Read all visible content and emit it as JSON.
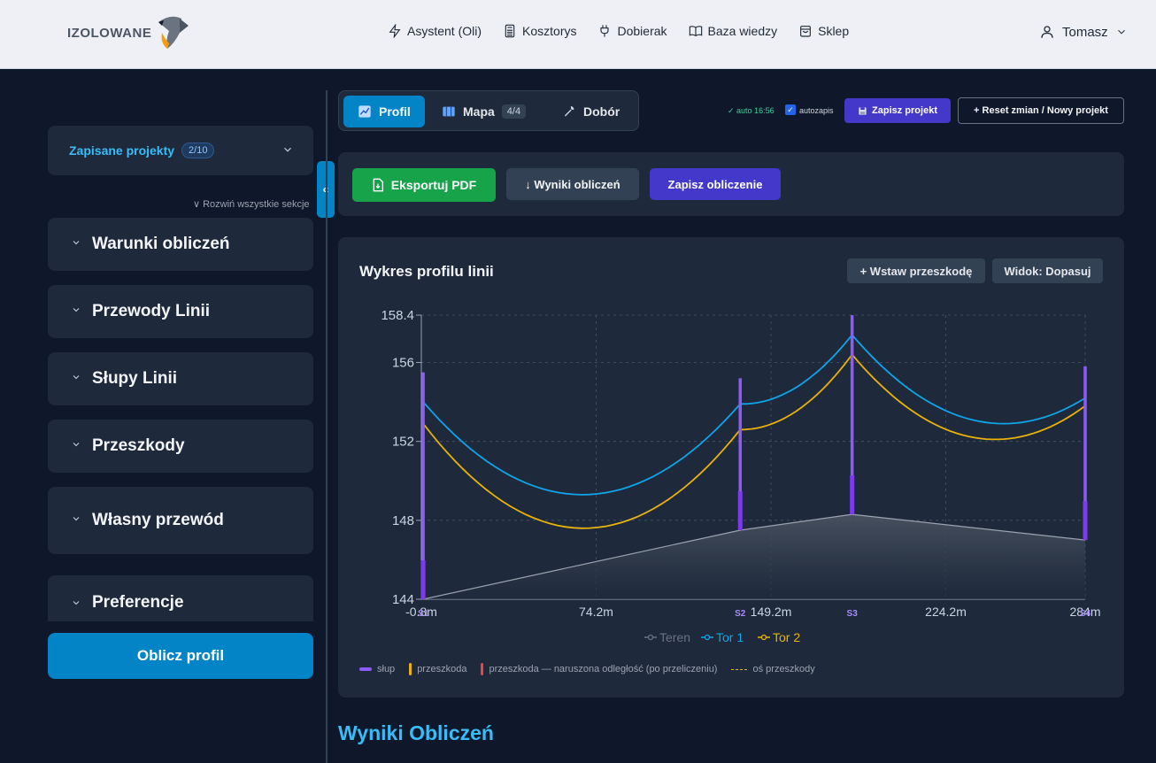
{
  "brand": {
    "name": "IZOLOWANE"
  },
  "nav": {
    "items": [
      {
        "label": "Asystent (Oli)",
        "icon": "lightning-icon"
      },
      {
        "label": "Kosztorys",
        "icon": "calculator-icon"
      },
      {
        "label": "Dobierak",
        "icon": "plug-icon"
      },
      {
        "label": "Baza wiedzy",
        "icon": "book-icon"
      },
      {
        "label": "Sklep",
        "icon": "bag-icon"
      }
    ],
    "user": "Tomasz"
  },
  "sidebar": {
    "saved_title": "Zapisane projekty",
    "saved_count": "2/10",
    "expand_all": "∨ Rozwiń wszystkie sekcje",
    "sections": [
      {
        "label": "Warunki obliczeń"
      },
      {
        "label": "Przewody Linii"
      },
      {
        "label": "Słupy Linii"
      },
      {
        "label": "Przeszkody"
      },
      {
        "label": "Własny przewód"
      },
      {
        "label": "Preferencje"
      }
    ],
    "calc_button": "Oblicz profil",
    "collapse_glyph": "«"
  },
  "tabs": [
    {
      "label": "Profil",
      "active": true
    },
    {
      "label": "Mapa",
      "count": "4/4"
    },
    {
      "label": "Dobór"
    }
  ],
  "autosave": {
    "status": "✓ auto 16:56",
    "label": "autozapis",
    "checked": true
  },
  "toolbar": {
    "save_project": "Zapisz projekt",
    "reset": "+ Reset zmian / Nowy projekt"
  },
  "actions": {
    "export_pdf": "Eksportuj PDF",
    "results": "↓ Wyniki obliczeń",
    "save_calc": "Zapisz obliczenie"
  },
  "chart_card": {
    "title": "Wykres profilu linii",
    "insert_obstacle": "+ Wstaw przeszkodę",
    "view": "Widok: Dopasuj",
    "legend_bottom": [
      {
        "label": "słup",
        "color": "#8b5cf6"
      },
      {
        "label": "przeszkoda",
        "color": "#eab308"
      },
      {
        "label": "przeszkoda — naruszona odległość (po przeliczeniu)",
        "color": "#ef4444"
      },
      {
        "label": "oś przeszkody",
        "color": "#eab308"
      }
    ]
  },
  "chart_data": {
    "type": "line",
    "title": "",
    "xlabel": "",
    "ylabel": "",
    "xlim": [
      -0.8,
      284
    ],
    "ylim": [
      144,
      158.4
    ],
    "y_ticks": [
      "144",
      "148",
      "152",
      "156",
      "158.4"
    ],
    "x_ticks": [
      "-0.8m",
      "74.2m",
      "149.2m",
      "224.2m",
      "284m"
    ],
    "legend_placement": "bottom-center",
    "grid": true,
    "poles": [
      {
        "label": "S1",
        "x": 0,
        "base": 144.0,
        "top": 155.5
      },
      {
        "label": "S2",
        "x": 136,
        "base": 147.5,
        "top": 155.2
      },
      {
        "label": "S3",
        "x": 184,
        "base": 148.3,
        "top": 158.4
      },
      {
        "label": "S4",
        "x": 284,
        "base": 147.0,
        "top": 155.8
      }
    ],
    "series": [
      {
        "name": "Teren",
        "color": "#6b7280",
        "x": [
          0,
          136,
          184,
          284
        ],
        "y": [
          144.0,
          147.5,
          148.3,
          147.0
        ]
      },
      {
        "name": "Tor 1",
        "color": "#0ea5e9",
        "spans": [
          {
            "x": [
              0,
              136
            ],
            "y_start": 154.0,
            "y_end": 153.9,
            "y_min": 149.3,
            "x_min": 68
          },
          {
            "x": [
              136,
              184
            ],
            "y_start": 153.9,
            "y_end": 157.4,
            "y_min": 153.9,
            "x_min": 138
          },
          {
            "x": [
              184,
              284
            ],
            "y_start": 157.4,
            "y_end": 154.2,
            "y_min": 152.9,
            "x_min": 250
          }
        ]
      },
      {
        "name": "Tor 2",
        "color": "#eab308",
        "spans": [
          {
            "x": [
              0,
              136
            ],
            "y_start": 152.9,
            "y_end": 152.6,
            "y_min": 147.6,
            "x_min": 70
          },
          {
            "x": [
              136,
              184
            ],
            "y_start": 152.6,
            "y_end": 156.4,
            "y_min": 152.6,
            "x_min": 137
          },
          {
            "x": [
              184,
              284
            ],
            "y_start": 156.4,
            "y_end": 153.8,
            "y_min": 152.1,
            "x_min": 246
          }
        ]
      }
    ]
  },
  "results": {
    "title": "Wyniki Obliczeń"
  }
}
